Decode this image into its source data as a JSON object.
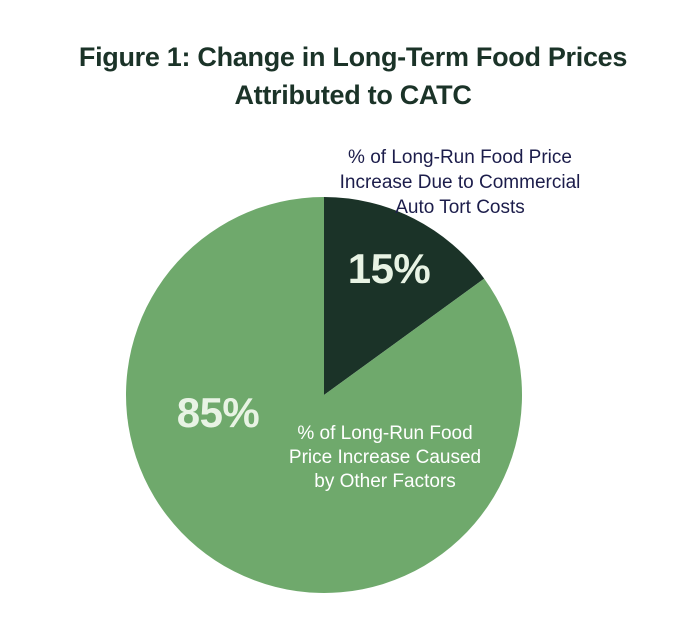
{
  "chart_data": {
    "type": "pie",
    "title": "Figure 1: Change in Long-Term Food Prices Attributed to CATC",
    "title_lines": [
      "Figure 1: Change in Long-Term Food Prices",
      "Attributed to CATC"
    ],
    "slices": [
      {
        "name": "Commercial Auto Tort Costs",
        "value": 15,
        "value_label": "15%",
        "description_lines": [
          "% of Long-Run Food Price",
          "Increase Due to Commercial",
          "Auto Tort Costs"
        ],
        "color": "#1b3328",
        "label_color": "#e8f3e4",
        "description_color": "#1c1d4b"
      },
      {
        "name": "Other Factors",
        "value": 85,
        "value_label": "85%",
        "description_lines": [
          "% of Long-Run Food",
          "Price Increase Caused",
          "by Other Factors"
        ],
        "color": "#6fa96c",
        "label_color": "#e8f3e4",
        "description_color": "#ffffff"
      }
    ],
    "start_angle_deg": 0,
    "direction": "clockwise"
  },
  "colors": {
    "title": "#1b3328",
    "background": "#ffffff"
  }
}
